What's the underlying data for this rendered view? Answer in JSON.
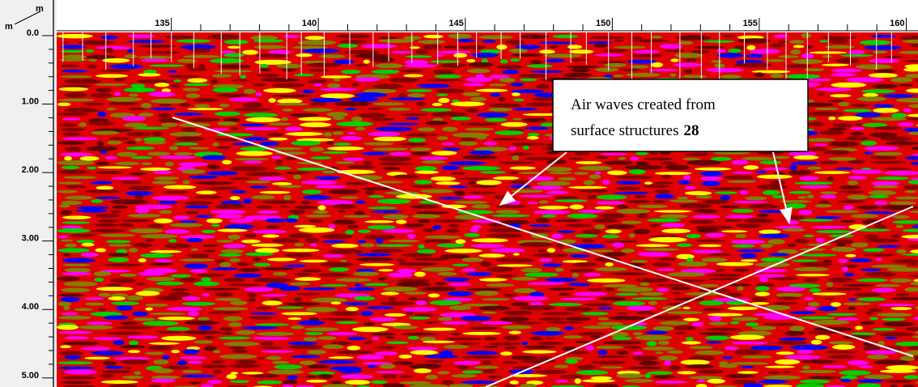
{
  "corner": {
    "top": "m",
    "left": "m"
  },
  "x_axis": {
    "ticks": [
      135,
      140,
      145,
      150,
      155,
      160
    ],
    "xlim": [
      131.1,
      160.4
    ]
  },
  "y_axis": {
    "ticks": [
      {
        "value": 0,
        "label": "0.0"
      },
      {
        "value": 1,
        "label": "1.00"
      },
      {
        "value": 2,
        "label": "2.00"
      },
      {
        "value": 3,
        "label": "3.00"
      },
      {
        "value": 4,
        "label": "4.00"
      },
      {
        "value": 5,
        "label": "5.00"
      }
    ],
    "ylim": [
      0,
      5.18
    ]
  },
  "annotation": {
    "lines": [
      "Air waves created from",
      "surface structures"
    ],
    "bold": "28"
  }
}
